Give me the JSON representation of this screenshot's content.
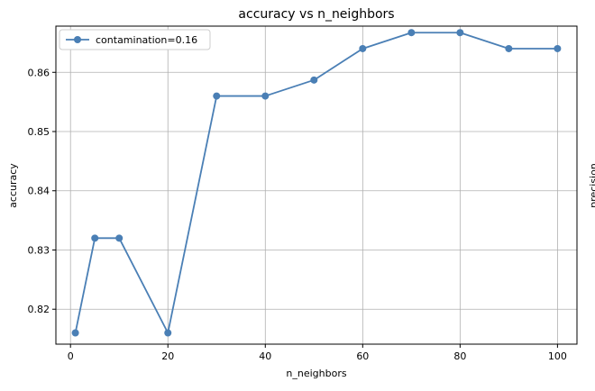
{
  "chart_data": {
    "type": "line",
    "title": "accuracy vs n_neighbors",
    "xlabel": "n_neighbors",
    "ylabel": "accuracy",
    "xlim": [
      -3,
      104
    ],
    "ylim": [
      0.8141,
      0.8678
    ],
    "xticks": [
      0,
      20,
      40,
      60,
      80,
      100
    ],
    "yticks": [
      0.82,
      0.83,
      0.84,
      0.85,
      0.86
    ],
    "xtick_labels": [
      "0",
      "20",
      "40",
      "60",
      "80",
      "100"
    ],
    "ytick_labels": [
      "0.82",
      "0.83",
      "0.84",
      "0.85",
      "0.86"
    ],
    "grid": true,
    "legend_position": "upper-left",
    "series": [
      {
        "name": "contamination=0.16",
        "color": "#4a7fb5",
        "marker": "circle",
        "x": [
          1,
          5,
          10,
          20,
          30,
          40,
          50,
          60,
          70,
          80,
          90,
          100
        ],
        "y": [
          0.816,
          0.832,
          0.832,
          0.816,
          0.856,
          0.856,
          0.8587,
          0.864,
          0.8667,
          0.8667,
          0.864,
          0.864
        ]
      }
    ],
    "clipped_neighbor_label": "precision"
  }
}
